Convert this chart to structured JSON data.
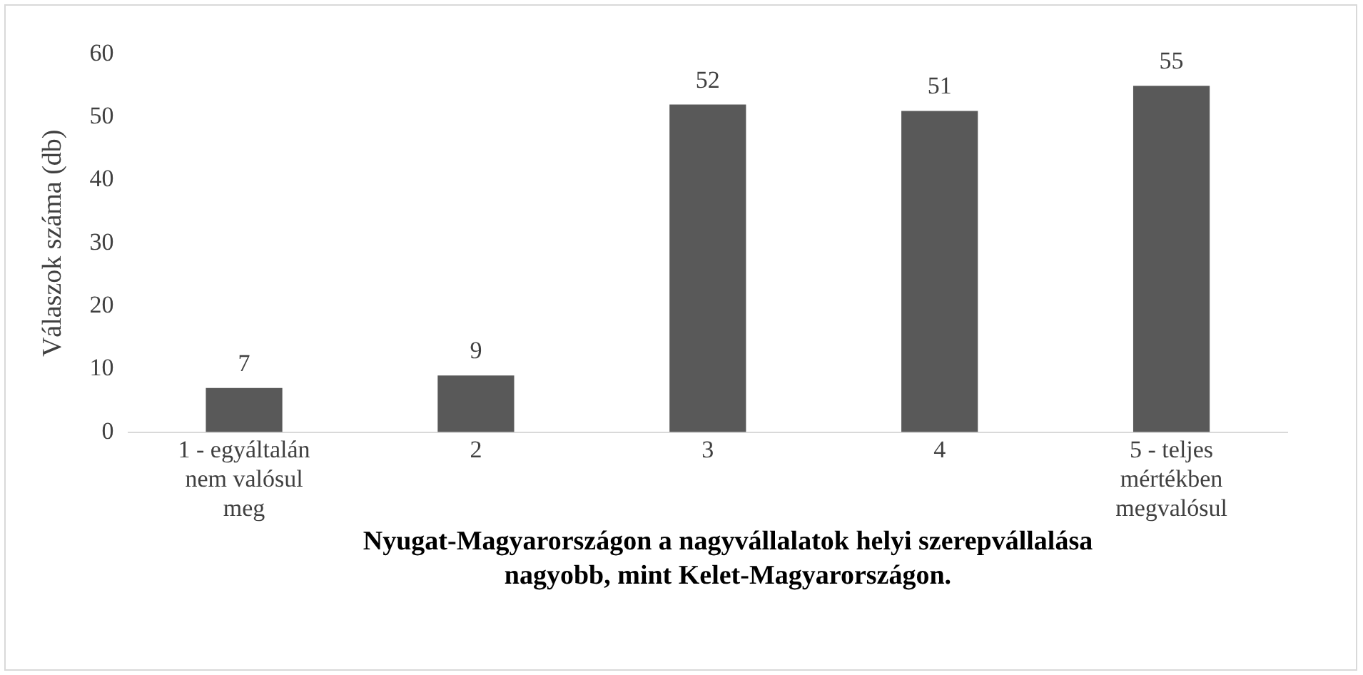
{
  "chart_data": {
    "type": "bar",
    "xlabel": "Nyugat-Magyarországon a nagyvállalatok helyi szerepvállalása nagyobb, mint Kelet-Magyarországon.",
    "ylabel": "Válaszok száma (db)",
    "categories": [
      "1 - egyáltalán nem valósul meg",
      "2",
      "3",
      "4",
      "5 - teljes mértékben megvalósul"
    ],
    "values": [
      7,
      9,
      52,
      51,
      55
    ],
    "color": "#595959",
    "ylim": [
      0,
      60
    ],
    "yticks": [
      0,
      10,
      20,
      30,
      40,
      50,
      60
    ],
    "grid": false,
    "legend": false,
    "data_labels": true
  }
}
